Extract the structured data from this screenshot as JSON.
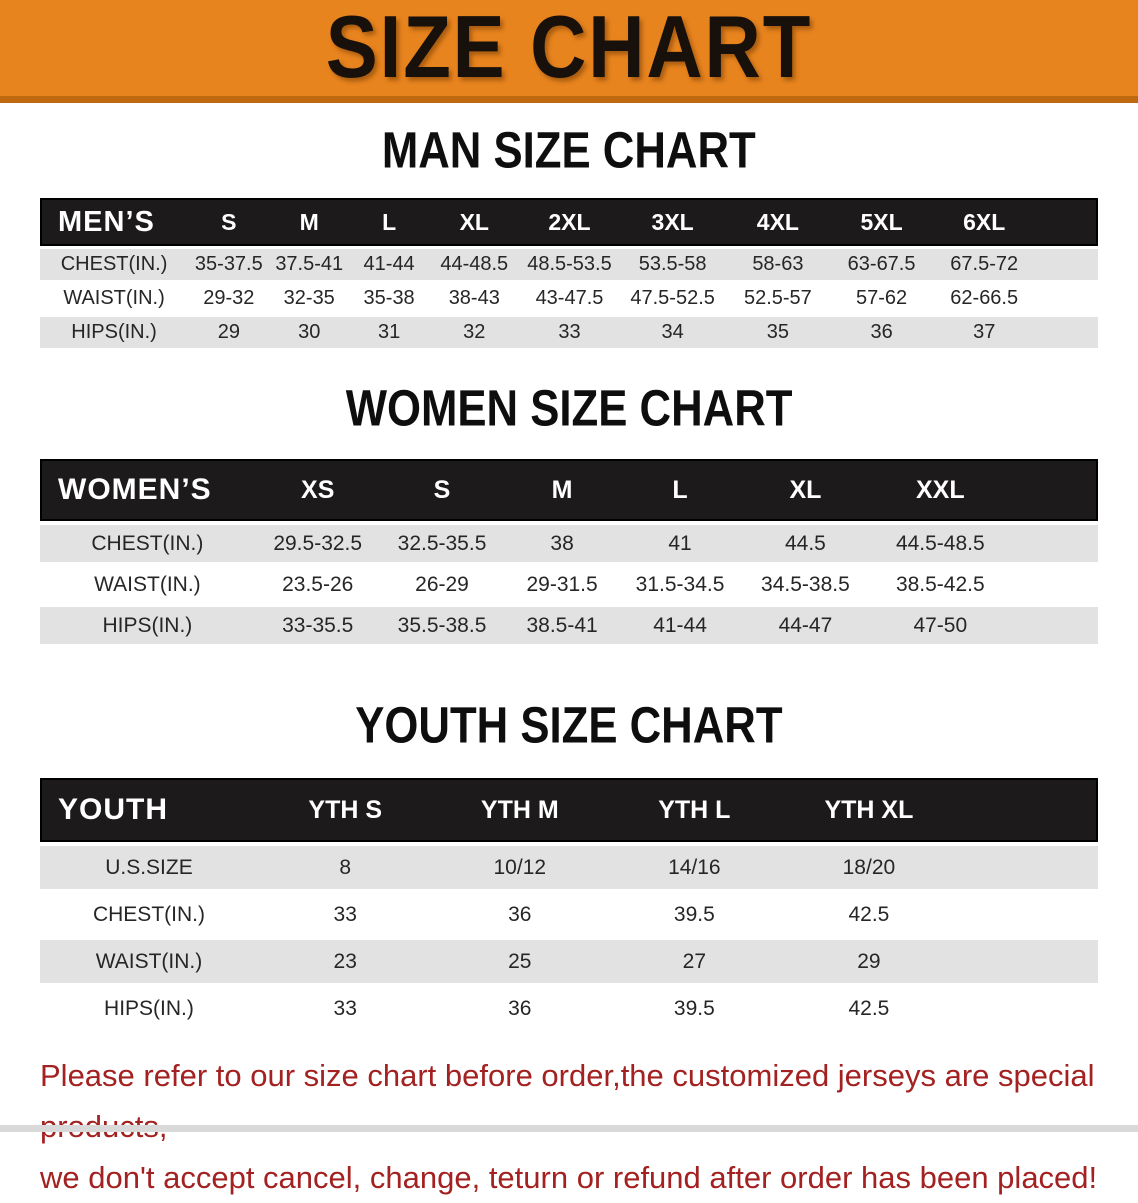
{
  "banner": {
    "title": "SIZE CHART",
    "bg_color": "#E8841E",
    "border_color": "#BE690F"
  },
  "sections": [
    {
      "id": "men",
      "heading": "MAN SIZE CHART",
      "table": {
        "label": "MEN’S",
        "columns": [
          "S",
          "M",
          "L",
          "XL",
          "2XL",
          "3XL",
          "4XL",
          "5XL",
          "6XL"
        ],
        "rows": [
          {
            "label": "CHEST(IN.)",
            "values": [
              "35-37.5",
              "37.5-41",
              "41-44",
              "44-48.5",
              "48.5-53.5",
              "53.5-58",
              "58-63",
              "63-67.5",
              "67.5-72"
            ]
          },
          {
            "label": "WAIST(IN.)",
            "values": [
              "29-32",
              "32-35",
              "35-38",
              "38-43",
              "43-47.5",
              "47.5-52.5",
              "52.5-57",
              "57-62",
              "62-66.5"
            ]
          },
          {
            "label": "HIPS(IN.)",
            "values": [
              "29",
              "30",
              "31",
              "32",
              "33",
              "34",
              "35",
              "36",
              "37"
            ]
          }
        ]
      }
    },
    {
      "id": "women",
      "heading": "WOMEN SIZE CHART",
      "table": {
        "label": "WOMEN’S",
        "columns": [
          "XS",
          "S",
          "M",
          "L",
          "XL",
          "XXL"
        ],
        "rows": [
          {
            "label": "CHEST(IN.)",
            "values": [
              "29.5-32.5",
              "32.5-35.5",
              "38",
              "41",
              "44.5",
              "44.5-48.5"
            ]
          },
          {
            "label": "WAIST(IN.)",
            "values": [
              "23.5-26",
              "26-29",
              "29-31.5",
              "31.5-34.5",
              "34.5-38.5",
              "38.5-42.5"
            ]
          },
          {
            "label": "HIPS(IN.)",
            "values": [
              "33-35.5",
              "35.5-38.5",
              "38.5-41",
              "41-44",
              "44-47",
              "47-50"
            ]
          }
        ]
      }
    },
    {
      "id": "youth",
      "heading": "YOUTH SIZE CHART",
      "table": {
        "label": "YOUTH",
        "columns": [
          "YTH S",
          "YTH M",
          "YTH L",
          "YTH XL"
        ],
        "rows": [
          {
            "label": "U.S.SIZE",
            "values": [
              "8",
              "10/12",
              "14/16",
              "18/20"
            ]
          },
          {
            "label": "CHEST(IN.)",
            "values": [
              "33",
              "36",
              "39.5",
              "42.5"
            ]
          },
          {
            "label": "WAIST(IN.)",
            "values": [
              "23",
              "25",
              "27",
              "29"
            ]
          },
          {
            "label": "HIPS(IN.)",
            "values": [
              "33",
              "36",
              "39.5",
              "42.5"
            ]
          }
        ]
      }
    }
  ],
  "footer": {
    "line1": "Please refer to our size chart before order,the customized jerseys are special products,",
    "line2": "we don't accept cancel, change, teturn or refund after order has been placed!",
    "color": "#A32121"
  }
}
